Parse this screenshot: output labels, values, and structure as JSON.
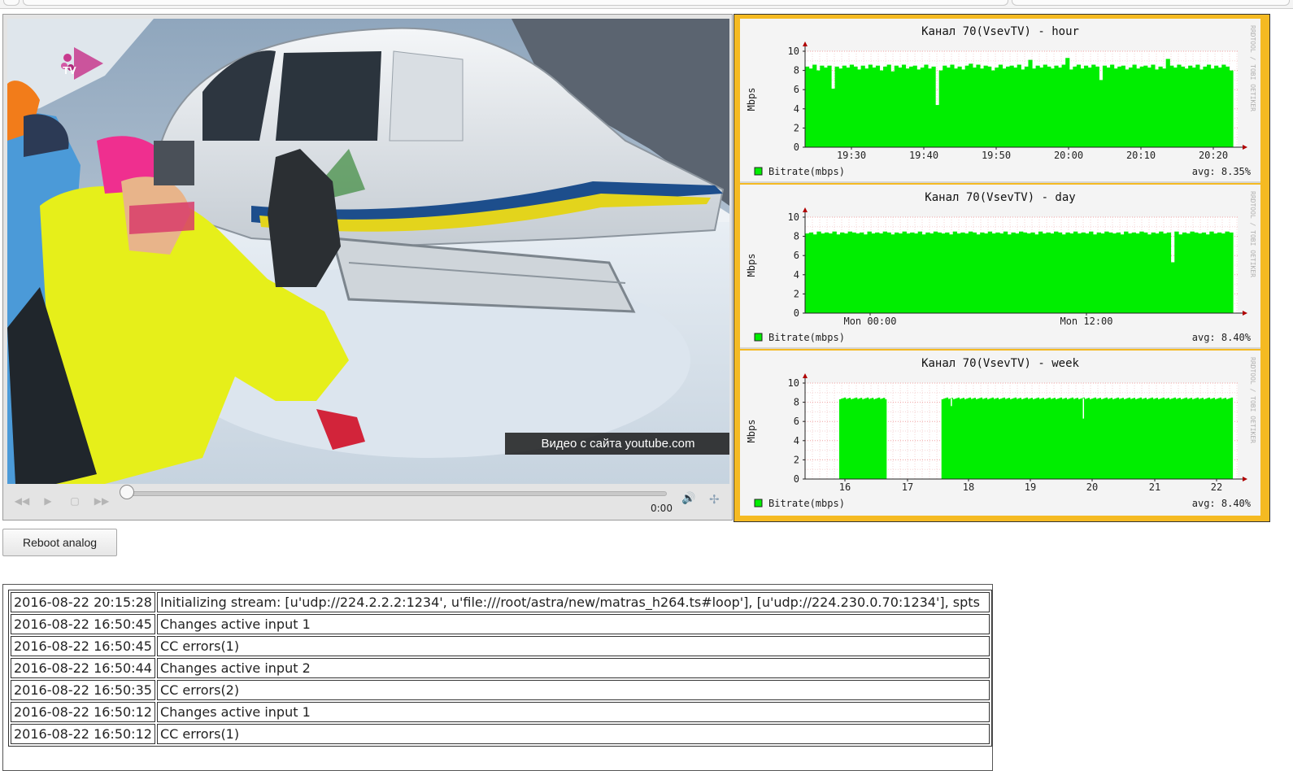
{
  "player": {
    "watermark": "Видео с сайта youtube.com",
    "logo_text": "TV",
    "time": "0:00",
    "progress": 0.0,
    "icons": {
      "rewind": "rewind-icon",
      "play": "play-icon",
      "stop": "stop-icon",
      "forward": "fast-forward-icon",
      "volume": "volume-icon",
      "fullscreen": "fullscreen-icon"
    }
  },
  "graphs": [
    {
      "title": "Канал 70(VsevTV) - hour",
      "ylabel": "Mbps",
      "yticks": [
        "0",
        "2",
        "4",
        "6",
        "8",
        "10"
      ],
      "xticks": [
        "19:30",
        "19:40",
        "19:50",
        "20:00",
        "20:10",
        "20:20"
      ],
      "legend": "Bitrate(mbps)",
      "avg": "avg: 8.35%",
      "side": "RRDTOOL / TOBI OETIKER"
    },
    {
      "title": "Канал 70(VsevTV) - day",
      "ylabel": "Mbps",
      "yticks": [
        "0",
        "2",
        "4",
        "6",
        "8",
        "10"
      ],
      "xticks": [
        "Mon 00:00",
        "Mon 12:00"
      ],
      "legend": "Bitrate(mbps)",
      "avg": "avg: 8.40%",
      "side": "RRDTOOL / TOBI OETIKER"
    },
    {
      "title": "Канал 70(VsevTV) - week",
      "ylabel": "Mbps",
      "yticks": [
        "0",
        "2",
        "4",
        "6",
        "8",
        "10"
      ],
      "xticks": [
        "16",
        "17",
        "18",
        "19",
        "20",
        "21",
        "22"
      ],
      "legend": "Bitrate(mbps)",
      "avg": "avg: 8.40%",
      "side": "RRDTOOL / TOBI OETIKER"
    }
  ],
  "chart_data": [
    {
      "type": "area",
      "title": "Канал 70(VsevTV) - hour",
      "ylabel": "Mbps",
      "ylim": [
        0,
        10
      ],
      "x_range": [
        "19:26",
        "20:25"
      ],
      "series": [
        {
          "name": "Bitrate(mbps)",
          "color": "#00ee00",
          "values": [
            8.4,
            8.2,
            8.6,
            8.0,
            8.5,
            8.3,
            8.5,
            6.1,
            8.4,
            8.2,
            8.5,
            8.3,
            8.6,
            8.4,
            8.1,
            8.5,
            8.2,
            8.6,
            8.3,
            8.5,
            8.0,
            8.4,
            8.6,
            7.9,
            8.5,
            8.3,
            8.6,
            8.2,
            8.4,
            8.5,
            8.1,
            8.3,
            8.6,
            8.2,
            8.4,
            4.4,
            8.0,
            8.5,
            8.3,
            8.6,
            8.2,
            8.4,
            8.1,
            8.5,
            8.7,
            8.3,
            8.6,
            8.2,
            8.5,
            8.4,
            8.0,
            8.3,
            8.6,
            8.2,
            8.4,
            8.5,
            8.3,
            8.6,
            8.1,
            8.4,
            9.1,
            8.2,
            8.5,
            8.3,
            8.6,
            8.4,
            8.2,
            8.5,
            8.3,
            8.6,
            9.3,
            8.1,
            8.4,
            8.6,
            8.2,
            8.5,
            8.3,
            8.6,
            8.4,
            7.0,
            8.5,
            8.3,
            8.6,
            8.2,
            8.4,
            8.5,
            8.1,
            8.3,
            8.6,
            8.2,
            8.4,
            8.5,
            8.3,
            8.6,
            8.1,
            8.4,
            8.2,
            9.2,
            8.5,
            8.3,
            8.6,
            8.4,
            8.2,
            8.5,
            8.3,
            8.6,
            8.1,
            8.4,
            8.6,
            8.2,
            8.5,
            8.3,
            8.6,
            8.4,
            8.0
          ]
        }
      ]
    },
    {
      "type": "area",
      "title": "Канал 70(VsevTV) - day",
      "ylabel": "Mbps",
      "ylim": [
        0,
        10
      ],
      "series": [
        {
          "name": "Bitrate(mbps)",
          "color": "#00ee00",
          "values": [
            8.3,
            8.4,
            8.2,
            8.5,
            8.3,
            8.4,
            8.3,
            8.5,
            8.2,
            8.4,
            8.3,
            8.5,
            8.4,
            8.3,
            8.4,
            8.2,
            8.5,
            8.3,
            8.4,
            8.3,
            8.5,
            8.4,
            8.2,
            8.4,
            8.3,
            8.5,
            8.3,
            8.4,
            8.3,
            8.5,
            8.2,
            8.4,
            8.3,
            8.5,
            8.4,
            8.3,
            8.4,
            8.2,
            8.5,
            8.3,
            8.4,
            8.3,
            8.5,
            8.4,
            8.2,
            8.4,
            8.3,
            8.5,
            8.3,
            8.4,
            8.3,
            8.5,
            8.2,
            8.4,
            8.3,
            8.5,
            8.4,
            8.3,
            8.4,
            8.2,
            8.5,
            8.3,
            8.4,
            8.3,
            8.5,
            8.4,
            8.2,
            8.4,
            8.3,
            8.5,
            8.3,
            8.4,
            8.3,
            8.5,
            8.2,
            8.4,
            8.3,
            8.5,
            8.4,
            8.3,
            8.4,
            8.2,
            8.5,
            8.3,
            8.4,
            8.3,
            8.5,
            8.4,
            8.2,
            8.4,
            8.3,
            8.5,
            8.3,
            8.4,
            5.3,
            8.5,
            8.2,
            8.4,
            8.3,
            8.5,
            8.4,
            8.3,
            8.4,
            8.2,
            8.5,
            8.3,
            8.4,
            8.3,
            8.5,
            8.4
          ]
        }
      ]
    },
    {
      "type": "area",
      "title": "Канал 70(VsevTV) - week",
      "ylabel": "Mbps",
      "ylim": [
        0,
        10
      ],
      "x_range": [
        15.7,
        22.6
      ],
      "segments": [
        {
          "from": 16.25,
          "to": 17.0,
          "value": 8.4
        },
        {
          "from": 17.9,
          "to": 22.6,
          "value": 8.4
        }
      ],
      "dips": [
        {
          "x": 18.05,
          "value": 7.6
        },
        {
          "x": 20.18,
          "value": 6.3
        }
      ],
      "series": [
        {
          "name": "Bitrate(mbps)",
          "color": "#00ee00"
        }
      ]
    }
  ],
  "reboot_button": {
    "label": "Reboot analog"
  },
  "log": [
    {
      "time": "2016-08-22 20:15:28",
      "message": "Initializing stream: [u'udp://224.2.2.2:1234', u'file:///root/astra/new/matras_h264.ts#loop'], [u'udp://224.230.0.70:1234'], spts"
    },
    {
      "time": "2016-08-22 16:50:45",
      "message": "Changes active input 1"
    },
    {
      "time": "2016-08-22 16:50:45",
      "message": "CC errors(1)"
    },
    {
      "time": "2016-08-22 16:50:44",
      "message": "Changes active input 2"
    },
    {
      "time": "2016-08-22 16:50:35",
      "message": "CC errors(2)"
    },
    {
      "time": "2016-08-22 16:50:12",
      "message": "Changes active input 1"
    },
    {
      "time": "2016-08-22 16:50:12",
      "message": "CC errors(1)"
    }
  ]
}
